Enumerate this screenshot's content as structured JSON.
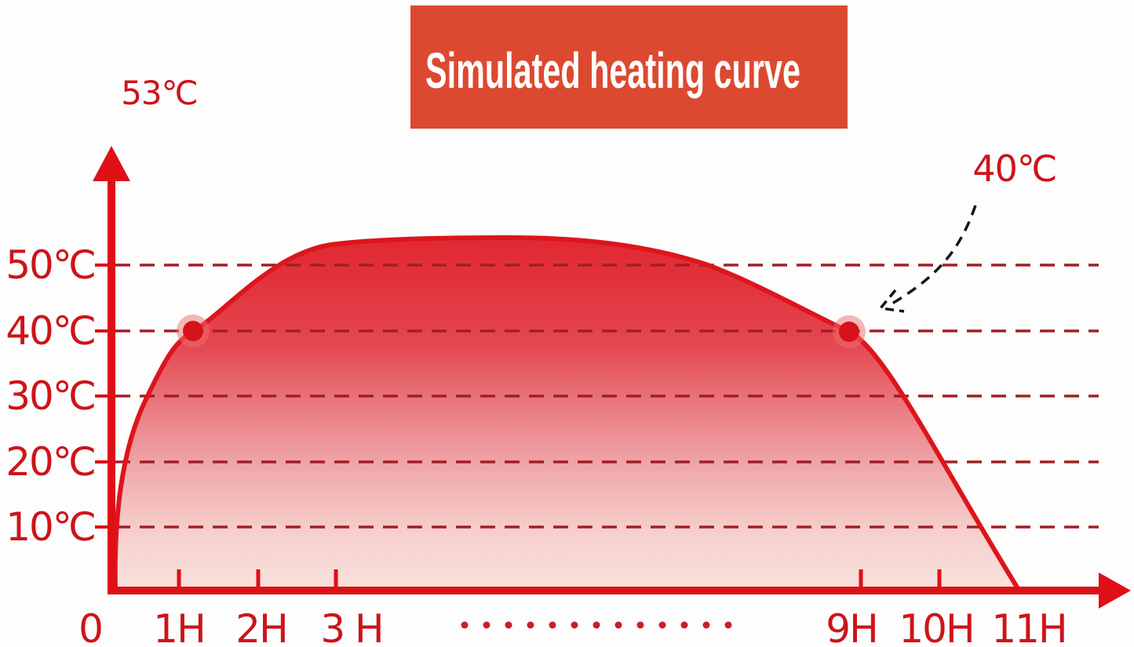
{
  "banner": {
    "label": "Simulated heating curve",
    "bg": "#dc4931",
    "fg": "#ffffff"
  },
  "chart_data": {
    "type": "area",
    "title": "Simulated heating curve",
    "x_axis": {
      "unit": "hours",
      "tick_labels": [
        "0",
        "1H",
        "2H",
        "3 H",
        "9H",
        "10H",
        "11H"
      ],
      "ellipsis_dot_count": 13
    },
    "y_axis": {
      "unit": "℃",
      "tick_labels": [
        "50℃",
        "40℃",
        "30℃",
        "20℃",
        "10℃"
      ],
      "max_label": "53℃",
      "ylim": [
        0,
        53
      ]
    },
    "series": [
      {
        "name": "simulated temperature",
        "x": [
          0,
          1,
          2,
          3,
          4,
          5,
          6,
          7,
          8,
          9,
          10,
          11
        ],
        "y": [
          0,
          40,
          50,
          52.5,
          53,
          53,
          53,
          52.5,
          47,
          40,
          19,
          0
        ]
      }
    ],
    "annotations": [
      {
        "label": "40℃",
        "points": [
          {
            "x": 1,
            "y": 40
          },
          {
            "x": 9,
            "y": 40
          }
        ]
      }
    ],
    "grid": "horizontal-dashed",
    "legend": "none",
    "colors": {
      "curve": "#dd151c",
      "fill_top": "#e02832",
      "fill_bottom": "#f9e3de",
      "grid": "#a02024",
      "text": "#cd1419",
      "banner_bg": "#dc4931",
      "annotation_arrow": "#151515"
    }
  }
}
